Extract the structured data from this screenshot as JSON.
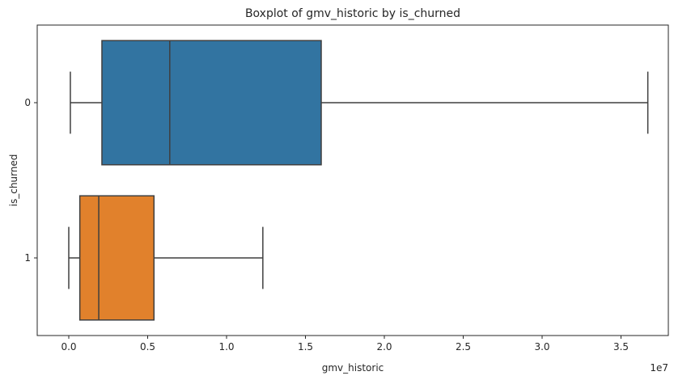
{
  "chart_data": {
    "type": "boxplot",
    "orientation": "horizontal",
    "title": "Boxplot of gmv_historic by is_churned",
    "xlabel": "gmv_historic",
    "ylabel": "is_churned",
    "x_scale_label": "1e7",
    "xlim": [
      -0.2,
      3.8
    ],
    "x_ticks": [
      0.0,
      0.5,
      1.0,
      1.5,
      2.0,
      2.5,
      3.0,
      3.5
    ],
    "x_tick_labels": [
      "0.0",
      "0.5",
      "1.0",
      "1.5",
      "2.0",
      "2.5",
      "3.0",
      "3.5"
    ],
    "x_multiplier": 10000000,
    "grid": false,
    "categories": [
      "0",
      "1"
    ],
    "series": [
      {
        "category": "0",
        "color": "#3274a1",
        "whisker_low": 0.01,
        "q1": 0.21,
        "median": 0.64,
        "q3": 1.6,
        "whisker_high": 3.67
      },
      {
        "category": "1",
        "color": "#e1812c",
        "whisker_low": 0.0,
        "q1": 0.07,
        "median": 0.19,
        "q3": 0.54,
        "whisker_high": 1.23
      }
    ]
  }
}
